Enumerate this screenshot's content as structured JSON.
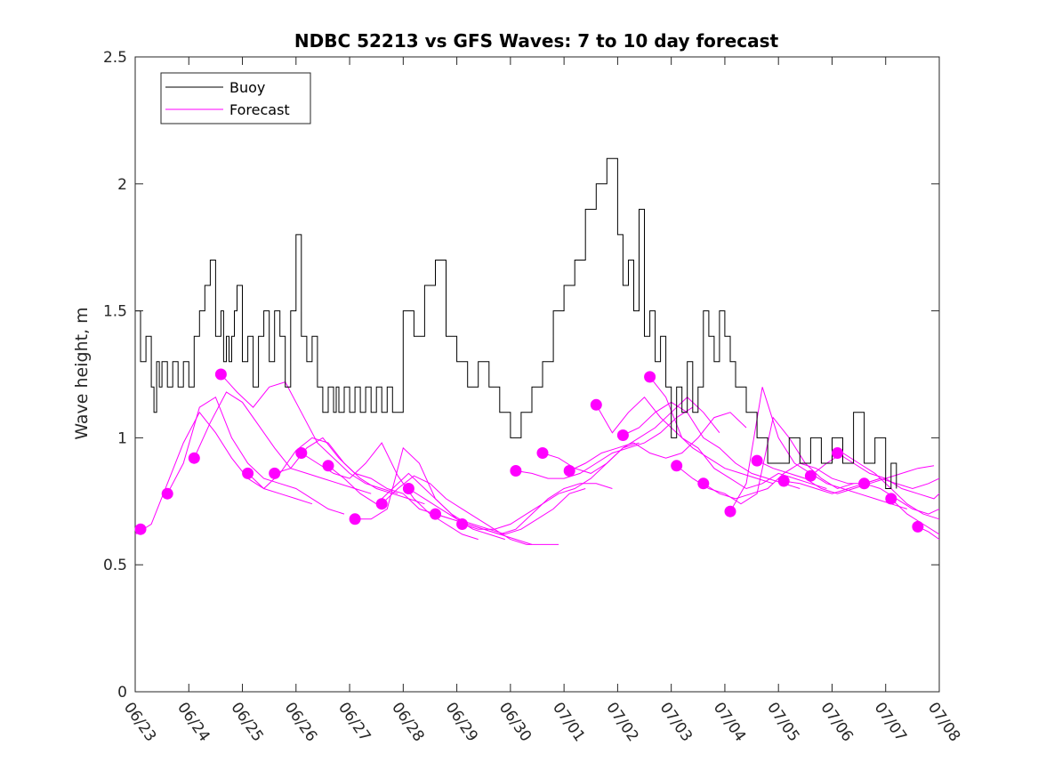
{
  "chart_data": {
    "type": "line",
    "title": "NDBC 52213 vs GFS Waves: 7 to 10 day forecast",
    "xlabel": "",
    "ylabel": "Wave height, m",
    "xlim": [
      0,
      15
    ],
    "ylim": [
      0,
      2.5
    ],
    "x_tick_labels": [
      "06/23",
      "06/24",
      "06/25",
      "06/26",
      "06/27",
      "06/28",
      "06/29",
      "06/30",
      "07/01",
      "07/02",
      "07/03",
      "07/04",
      "07/05",
      "07/06",
      "07/07",
      "07/08"
    ],
    "y_ticks": [
      0,
      0.5,
      1,
      1.5,
      2,
      2.5
    ],
    "y_tick_labels": [
      "0",
      "0.5",
      "1",
      "1.5",
      "2",
      "2.5"
    ],
    "grid": false,
    "legend_position": "top-left",
    "colors": {
      "buoy": "#000000",
      "forecast": "#ff00ff"
    },
    "legend": [
      {
        "label": "Buoy",
        "color": "#000000"
      },
      {
        "label": "Forecast",
        "color": "#ff00ff"
      }
    ],
    "buoy": {
      "name": "Buoy",
      "x": [
        0,
        0.1,
        0.2,
        0.3,
        0.35,
        0.4,
        0.45,
        0.5,
        0.6,
        0.7,
        0.8,
        0.9,
        1.0,
        1.1,
        1.2,
        1.3,
        1.4,
        1.5,
        1.6,
        1.65,
        1.7,
        1.75,
        1.8,
        1.85,
        1.9,
        2.0,
        2.1,
        2.2,
        2.3,
        2.4,
        2.5,
        2.6,
        2.7,
        2.8,
        2.9,
        3.0,
        3.1,
        3.2,
        3.3,
        3.4,
        3.5,
        3.6,
        3.7,
        3.75,
        3.8,
        3.9,
        4.0,
        4.1,
        4.2,
        4.3,
        4.4,
        4.5,
        4.6,
        4.7,
        4.8,
        4.9,
        5.0,
        5.2,
        5.4,
        5.6,
        5.8,
        6.0,
        6.2,
        6.4,
        6.6,
        6.8,
        7.0,
        7.2,
        7.4,
        7.6,
        7.8,
        8.0,
        8.2,
        8.4,
        8.6,
        8.8,
        9.0,
        9.1,
        9.2,
        9.3,
        9.4,
        9.5,
        9.6,
        9.7,
        9.8,
        9.9,
        10.0,
        10.1,
        10.2,
        10.3,
        10.4,
        10.5,
        10.6,
        10.7,
        10.8,
        10.9,
        11.0,
        11.1,
        11.2,
        11.4,
        11.6,
        11.8,
        12.0,
        12.2,
        12.4,
        12.6,
        12.8,
        13.0,
        13.2,
        13.4,
        13.6,
        13.8,
        14.0,
        14.1,
        14.2
      ],
      "y": [
        1.5,
        1.3,
        1.4,
        1.2,
        1.1,
        1.3,
        1.2,
        1.3,
        1.2,
        1.3,
        1.2,
        1.3,
        1.2,
        1.4,
        1.5,
        1.6,
        1.7,
        1.4,
        1.5,
        1.3,
        1.4,
        1.3,
        1.4,
        1.5,
        1.6,
        1.3,
        1.4,
        1.2,
        1.4,
        1.5,
        1.3,
        1.5,
        1.4,
        1.2,
        1.5,
        1.8,
        1.4,
        1.3,
        1.4,
        1.2,
        1.1,
        1.2,
        1.1,
        1.2,
        1.1,
        1.2,
        1.1,
        1.2,
        1.1,
        1.2,
        1.1,
        1.2,
        1.1,
        1.2,
        1.1,
        1.1,
        1.5,
        1.4,
        1.6,
        1.7,
        1.4,
        1.3,
        1.2,
        1.3,
        1.2,
        1.1,
        1.0,
        1.1,
        1.2,
        1.3,
        1.5,
        1.6,
        1.7,
        1.9,
        2.0,
        2.1,
        1.8,
        1.6,
        1.7,
        1.5,
        1.9,
        1.4,
        1.5,
        1.3,
        1.4,
        1.2,
        1.0,
        1.2,
        1.1,
        1.3,
        1.1,
        1.2,
        1.5,
        1.4,
        1.3,
        1.5,
        1.4,
        1.3,
        1.2,
        1.1,
        1.0,
        0.9,
        0.9,
        1.0,
        0.9,
        1.0,
        0.9,
        1.0,
        0.9,
        1.1,
        0.9,
        1.0,
        0.8,
        0.9,
        0.8
      ]
    },
    "forecast_runs": [
      {
        "x": [
          0,
          0.3,
          0.6,
          0.9,
          1.2,
          1.5,
          1.8,
          2.1,
          2.4,
          2.7,
          3.0,
          3.3
        ],
        "y": [
          0.62,
          0.66,
          0.82,
          0.98,
          1.1,
          1.02,
          0.92,
          0.84,
          0.8,
          0.78,
          0.76,
          0.74
        ]
      },
      {
        "x": [
          0.6,
          0.9,
          1.2,
          1.5,
          1.8,
          2.1,
          2.4,
          2.7,
          3.0,
          3.3,
          3.6,
          3.9
        ],
        "y": [
          0.78,
          0.9,
          1.12,
          1.16,
          1.0,
          0.9,
          0.84,
          0.82,
          0.8,
          0.76,
          0.72,
          0.7
        ]
      },
      {
        "x": [
          1.1,
          1.4,
          1.7,
          2.0,
          2.3,
          2.6,
          2.9,
          3.2,
          3.5,
          3.8,
          4.1,
          4.4
        ],
        "y": [
          0.92,
          1.06,
          1.18,
          1.14,
          1.05,
          0.96,
          0.88,
          0.86,
          0.84,
          0.82,
          0.8,
          0.78
        ]
      },
      {
        "x": [
          1.6,
          1.9,
          2.2,
          2.5,
          2.8,
          3.1,
          3.4,
          3.7,
          4.0,
          4.3,
          4.6,
          4.9
        ],
        "y": [
          1.25,
          1.18,
          1.12,
          1.2,
          1.22,
          1.1,
          0.98,
          0.92,
          0.86,
          0.82,
          0.8,
          0.78
        ]
      },
      {
        "x": [
          2.1,
          2.4,
          2.7,
          3.0,
          3.3,
          3.6,
          3.9,
          4.2,
          4.5,
          4.8,
          5.1,
          5.4
        ],
        "y": [
          0.86,
          0.8,
          0.86,
          0.95,
          1.0,
          0.98,
          0.9,
          0.84,
          0.8,
          0.78,
          0.76,
          0.74
        ]
      },
      {
        "x": [
          2.6,
          2.9,
          3.2,
          3.5,
          3.8,
          4.1,
          4.4,
          4.7,
          5.0,
          5.3,
          5.6,
          5.9
        ],
        "y": [
          0.86,
          0.88,
          0.96,
          1.0,
          0.92,
          0.86,
          0.84,
          0.8,
          0.78,
          0.72,
          0.7,
          0.68
        ]
      },
      {
        "x": [
          3.1,
          3.4,
          3.7,
          4.0,
          4.3,
          4.6,
          4.9,
          5.2,
          5.5,
          5.8,
          6.1,
          6.4
        ],
        "y": [
          0.94,
          0.9,
          0.86,
          0.84,
          0.9,
          0.98,
          0.85,
          0.76,
          0.7,
          0.66,
          0.62,
          0.6
        ]
      },
      {
        "x": [
          3.6,
          3.9,
          4.2,
          4.5,
          4.8,
          5.1,
          5.4,
          5.7,
          6.0,
          6.3,
          6.6,
          6.9
        ],
        "y": [
          0.89,
          0.84,
          0.78,
          0.74,
          0.8,
          0.86,
          0.8,
          0.74,
          0.68,
          0.64,
          0.62,
          0.6
        ]
      },
      {
        "x": [
          4.1,
          4.4,
          4.7,
          5.0,
          5.3,
          5.6,
          5.9,
          6.2,
          6.5,
          6.8,
          7.1,
          7.4
        ],
        "y": [
          0.68,
          0.68,
          0.72,
          0.96,
          0.9,
          0.76,
          0.7,
          0.66,
          0.64,
          0.62,
          0.6,
          0.58
        ]
      },
      {
        "x": [
          4.6,
          4.9,
          5.2,
          5.5,
          5.8,
          6.1,
          6.4,
          6.7,
          7.0,
          7.3,
          7.6,
          7.9
        ],
        "y": [
          0.74,
          0.8,
          0.85,
          0.82,
          0.76,
          0.72,
          0.68,
          0.64,
          0.6,
          0.58,
          0.58,
          0.58
        ]
      },
      {
        "x": [
          5.1,
          5.4,
          5.7,
          6.0,
          6.3,
          6.6,
          6.9,
          7.2,
          7.5,
          7.8,
          8.1,
          8.4
        ],
        "y": [
          0.8,
          0.76,
          0.72,
          0.68,
          0.66,
          0.64,
          0.62,
          0.64,
          0.68,
          0.72,
          0.78,
          0.8
        ]
      },
      {
        "x": [
          5.6,
          5.9,
          6.2,
          6.5,
          6.8,
          7.1,
          7.4,
          7.7,
          8.0,
          8.3,
          8.6,
          8.9
        ],
        "y": [
          0.7,
          0.68,
          0.66,
          0.64,
          0.62,
          0.64,
          0.7,
          0.76,
          0.8,
          0.82,
          0.82,
          0.8
        ]
      },
      {
        "x": [
          6.1,
          6.4,
          6.7,
          7.0,
          7.3,
          7.6,
          7.9,
          8.2,
          8.5,
          8.8,
          9.1,
          9.4
        ],
        "y": [
          0.66,
          0.64,
          0.64,
          0.66,
          0.7,
          0.74,
          0.78,
          0.8,
          0.84,
          0.9,
          0.96,
          0.98
        ]
      },
      {
        "x": [
          7.1,
          7.4,
          7.7,
          8.0,
          8.3,
          8.6,
          8.9,
          9.2,
          9.5,
          9.8,
          10.1,
          10.4
        ],
        "y": [
          0.87,
          0.86,
          0.84,
          0.84,
          0.86,
          0.9,
          0.94,
          0.96,
          0.98,
          1.02,
          1.08,
          1.12
        ]
      },
      {
        "x": [
          7.6,
          7.9,
          8.2,
          8.5,
          8.8,
          9.1,
          9.4,
          9.7,
          10.0,
          10.3,
          10.6,
          10.9
        ],
        "y": [
          0.94,
          0.92,
          0.88,
          0.86,
          0.9,
          0.96,
          1.0,
          1.04,
          1.1,
          1.16,
          1.1,
          1.02
        ]
      },
      {
        "x": [
          8.1,
          8.4,
          8.7,
          9.0,
          9.3,
          9.6,
          9.9,
          10.2,
          10.5,
          10.8,
          11.1,
          11.4
        ],
        "y": [
          0.87,
          0.9,
          0.94,
          0.96,
          0.98,
          0.94,
          0.92,
          0.94,
          1.0,
          1.08,
          1.1,
          1.04
        ]
      },
      {
        "x": [
          8.6,
          8.9,
          9.2,
          9.5,
          9.8,
          10.1,
          10.4,
          10.7,
          11.0,
          11.3,
          11.6,
          11.9
        ],
        "y": [
          1.13,
          1.02,
          1.1,
          1.16,
          1.08,
          1.02,
          0.96,
          0.92,
          0.88,
          0.86,
          0.84,
          0.82
        ]
      },
      {
        "x": [
          9.1,
          9.4,
          9.7,
          10.0,
          10.3,
          10.6,
          10.9,
          11.2,
          11.5,
          11.8,
          12.1,
          12.4
        ],
        "y": [
          1.01,
          1.04,
          1.1,
          1.14,
          1.1,
          1.0,
          0.96,
          0.9,
          0.86,
          0.84,
          0.82,
          0.8
        ]
      },
      {
        "x": [
          9.6,
          9.9,
          10.2,
          10.5,
          10.8,
          11.1,
          11.4,
          11.7,
          12.0,
          12.3,
          12.6,
          12.9
        ],
        "y": [
          1.24,
          1.16,
          1.0,
          0.96,
          0.88,
          0.84,
          0.8,
          0.82,
          0.86,
          0.84,
          0.82,
          0.8
        ]
      },
      {
        "x": [
          10.1,
          10.4,
          10.7,
          11.0,
          11.3,
          11.6,
          11.9,
          12.2,
          12.5,
          12.8,
          13.1,
          13.4
        ],
        "y": [
          0.89,
          0.84,
          0.8,
          0.78,
          0.74,
          0.78,
          1.08,
          1.0,
          0.9,
          0.84,
          0.8,
          0.82
        ]
      },
      {
        "x": [
          10.6,
          10.9,
          11.2,
          11.5,
          11.8,
          12.1,
          12.4,
          12.7,
          13.0,
          13.3,
          13.6,
          13.9
        ],
        "y": [
          0.82,
          0.78,
          0.76,
          0.78,
          0.8,
          0.86,
          0.9,
          0.88,
          0.84,
          0.82,
          0.82,
          0.84
        ]
      },
      {
        "x": [
          11.1,
          11.4,
          11.7,
          12.0,
          12.3,
          12.6,
          12.9,
          13.2,
          13.5,
          13.8,
          14.1,
          14.4
        ],
        "y": [
          0.71,
          0.82,
          1.2,
          1.0,
          0.9,
          0.86,
          0.82,
          0.8,
          0.78,
          0.76,
          0.74,
          0.72
        ]
      },
      {
        "x": [
          11.6,
          11.9,
          12.2,
          12.5,
          12.8,
          13.1,
          13.4,
          13.7,
          14.0,
          14.3,
          14.6,
          14.9
        ],
        "y": [
          0.91,
          0.88,
          0.86,
          0.84,
          0.8,
          0.78,
          0.8,
          0.82,
          0.84,
          0.86,
          0.88,
          0.89
        ]
      },
      {
        "x": [
          12.1,
          12.4,
          12.7,
          13.0,
          13.3,
          13.6,
          13.9,
          14.2,
          14.5,
          14.8,
          15.0
        ],
        "y": [
          0.83,
          0.82,
          0.8,
          0.78,
          0.8,
          0.82,
          0.84,
          0.82,
          0.8,
          0.82,
          0.84
        ]
      },
      {
        "x": [
          12.6,
          12.9,
          13.2,
          13.5,
          13.8,
          14.1,
          14.4,
          14.7,
          15.0
        ],
        "y": [
          0.85,
          0.9,
          0.94,
          0.9,
          0.86,
          0.8,
          0.74,
          0.7,
          0.68
        ]
      },
      {
        "x": [
          13.1,
          13.4,
          13.7,
          14.0,
          14.3,
          14.6,
          14.9,
          15.0
        ],
        "y": [
          0.94,
          0.9,
          0.86,
          0.84,
          0.8,
          0.78,
          0.76,
          0.78
        ]
      },
      {
        "x": [
          13.6,
          13.9,
          14.2,
          14.5,
          14.8,
          15.0
        ],
        "y": [
          0.82,
          0.8,
          0.76,
          0.72,
          0.7,
          0.72
        ]
      },
      {
        "x": [
          14.1,
          14.4,
          14.7,
          15.0
        ],
        "y": [
          0.76,
          0.7,
          0.66,
          0.62
        ]
      },
      {
        "x": [
          14.6,
          14.8,
          15.0
        ],
        "y": [
          0.65,
          0.63,
          0.6
        ]
      }
    ],
    "forecast_markers": {
      "name": "Forecast",
      "x": [
        0.1,
        0.6,
        1.1,
        1.6,
        2.1,
        2.6,
        3.1,
        3.6,
        4.1,
        4.6,
        5.1,
        5.6,
        6.1,
        7.1,
        7.6,
        8.1,
        8.6,
        9.1,
        9.6,
        10.1,
        10.6,
        11.1,
        11.6,
        12.1,
        12.6,
        13.1,
        13.6,
        14.1,
        14.6
      ],
      "y": [
        0.64,
        0.78,
        0.92,
        1.25,
        0.86,
        0.86,
        0.94,
        0.89,
        0.68,
        0.74,
        0.8,
        0.7,
        0.66,
        0.87,
        0.94,
        0.87,
        1.13,
        1.01,
        1.24,
        0.89,
        0.82,
        0.71,
        0.91,
        0.83,
        0.85,
        0.94,
        0.82,
        0.76,
        0.65
      ]
    }
  }
}
